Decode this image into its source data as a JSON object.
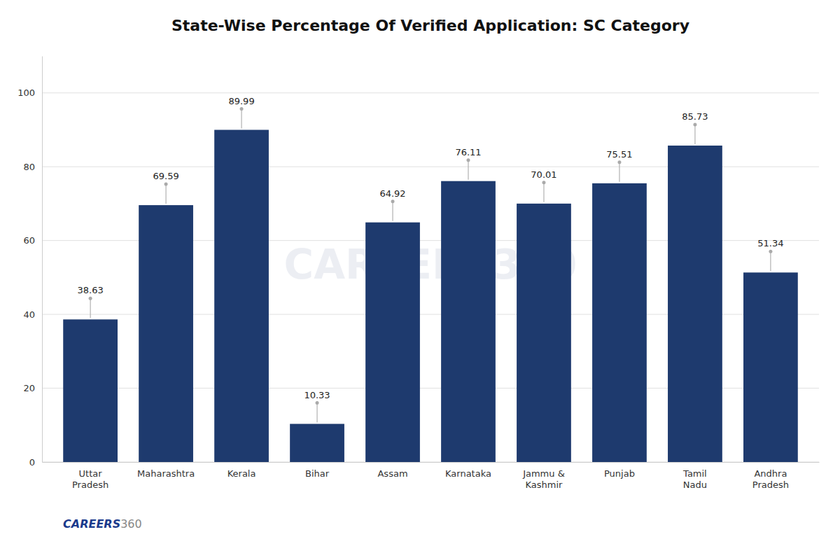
{
  "chart_data": {
    "type": "bar",
    "title": "State-Wise Percentage Of Verified Application: SC Category",
    "categories": [
      "Uttar\nPradesh",
      "Maharashtra",
      "Kerala",
      "Bihar",
      "Assam",
      "Karnataka",
      "Jammu &\nKashmir",
      "Punjab",
      "Tamil\nNadu",
      "Andhra\nPradesh"
    ],
    "values": [
      38.63,
      69.59,
      89.99,
      10.33,
      64.92,
      76.11,
      70.01,
      75.51,
      85.73,
      51.34
    ],
    "color": "#1e3a6e",
    "ylim": [
      0,
      110
    ],
    "yticks": [
      0,
      20,
      40,
      60,
      80,
      100
    ],
    "grid": true,
    "data_labels": true,
    "annotations": [
      "CAREERS360",
      "CAREERS",
      "360"
    ]
  }
}
